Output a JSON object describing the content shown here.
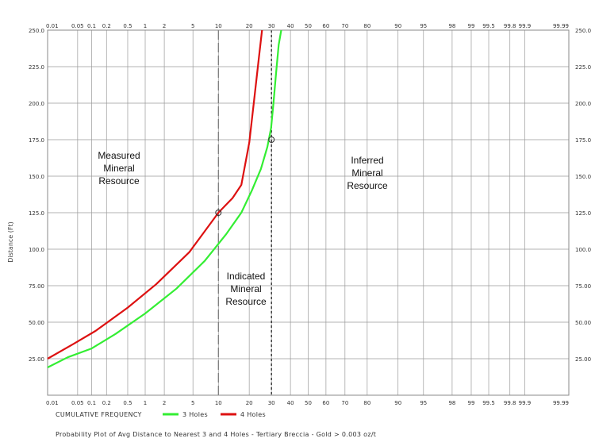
{
  "chart_data": {
    "type": "line",
    "title": "Probability Plot of Avg Distance to Nearest 3 and 4 Holes - Tertiary Breccia - Gold > 0.003 oz/t",
    "xlabel": "CUMULATIVE FREQUENCY",
    "ylabel": "Distance (Ft)",
    "x_scale": "probability",
    "xlim": [
      0.01,
      99.99
    ],
    "ylim": [
      0,
      250
    ],
    "x_ticks": [
      0.01,
      0.05,
      0.1,
      0.2,
      0.5,
      1,
      2,
      5,
      10,
      20,
      30,
      40,
      50,
      60,
      70,
      80,
      90,
      95,
      98,
      99,
      99.5,
      99.8,
      99.9,
      99.99
    ],
    "x_tick_labels": [
      "0.01",
      "0.05",
      "0.1",
      "0.2",
      "0.5",
      "1",
      "2",
      "5",
      "10",
      "20",
      "30",
      "40",
      "50",
      "60",
      "70",
      "80",
      "90",
      "95",
      "98",
      "99",
      "99.5",
      "99.8",
      "99.9",
      "99.99"
    ],
    "y_ticks": [
      25,
      50,
      75,
      100,
      125,
      150,
      175,
      200,
      225,
      250
    ],
    "y_tick_labels": [
      "25.00",
      "50.00",
      "75.00",
      "100.0",
      "125.0",
      "150.0",
      "175.0",
      "200.0",
      "225.0",
      "250.0"
    ],
    "grid": true,
    "legend_position": "bottom",
    "series": [
      {
        "name": "3 Holes",
        "color": "#33ee33",
        "points": [
          [
            0.01,
            19
          ],
          [
            0.03,
            26
          ],
          [
            0.1,
            32
          ],
          [
            0.3,
            42
          ],
          [
            1,
            56
          ],
          [
            3,
            73
          ],
          [
            7,
            92
          ],
          [
            12,
            110
          ],
          [
            17,
            125
          ],
          [
            21,
            140
          ],
          [
            25,
            155
          ],
          [
            28,
            170
          ],
          [
            29.8,
            183
          ],
          [
            31,
            200
          ],
          [
            32.3,
            220
          ],
          [
            33.7,
            240
          ],
          [
            35,
            250
          ]
        ]
      },
      {
        "name": "4 Holes",
        "color": "#dd1111",
        "points": [
          [
            0.01,
            25
          ],
          [
            0.04,
            35
          ],
          [
            0.12,
            44
          ],
          [
            0.5,
            60
          ],
          [
            1.5,
            76
          ],
          [
            4.5,
            98
          ],
          [
            10,
            125
          ],
          [
            14,
            135
          ],
          [
            17,
            144
          ],
          [
            20,
            173
          ],
          [
            22,
            202
          ],
          [
            24,
            230
          ],
          [
            25.5,
            250
          ]
        ]
      }
    ],
    "reference_lines": [
      {
        "x": 10,
        "style": "long-dash",
        "color": "#777777"
      },
      {
        "x": 30,
        "style": "short-dash",
        "color": "#111111"
      }
    ],
    "markers": [
      {
        "x": 10,
        "y": 125
      },
      {
        "x": 30,
        "y": 175
      }
    ],
    "region_labels": [
      {
        "lines": [
          "Measured",
          "Mineral",
          "Resource"
        ]
      },
      {
        "lines": [
          "Indicated",
          "Mineral",
          "Resource"
        ]
      },
      {
        "lines": [
          "Inferred",
          "Mineral",
          "Resource"
        ]
      }
    ]
  }
}
